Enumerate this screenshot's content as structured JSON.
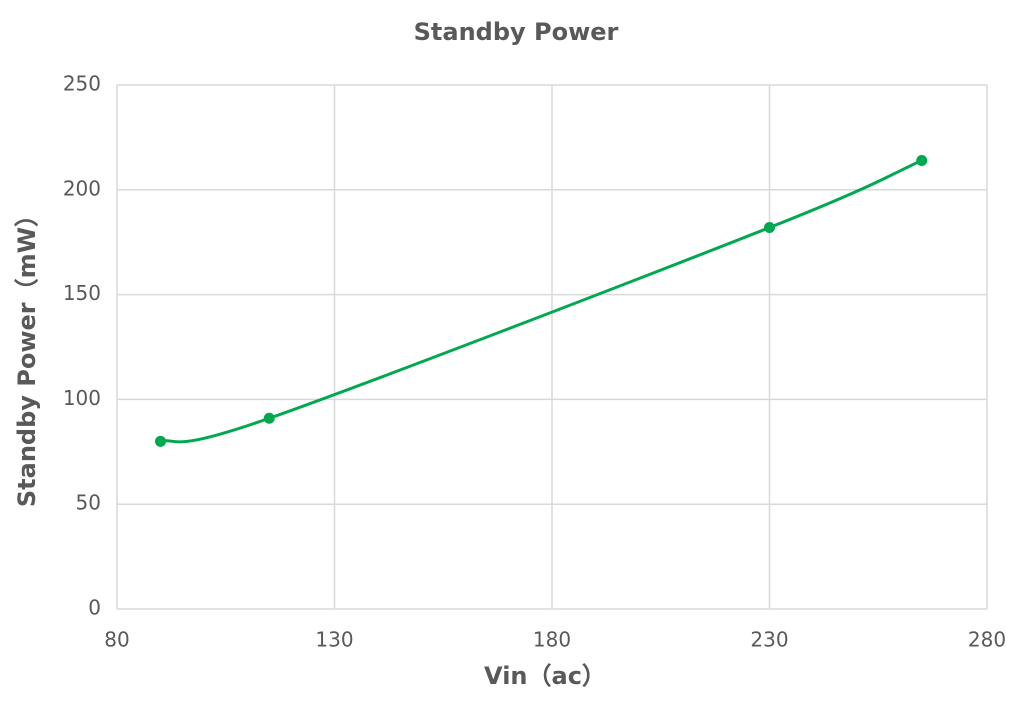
{
  "chart_data": {
    "type": "line",
    "title": "Standby Power",
    "x_label": "Vin（ac）",
    "y_label": "Standby Power（mW）",
    "x": [
      90,
      115,
      230,
      265
    ],
    "series": [
      {
        "name": "Standby Power",
        "color": "#00a850",
        "values": [
          80,
          91,
          182,
          214
        ]
      }
    ],
    "xlim": [
      80,
      280
    ],
    "xticks": [
      80,
      130,
      180,
      230,
      280
    ],
    "ylim": [
      0,
      250
    ],
    "yticks": [
      0,
      50,
      100,
      150,
      200,
      250
    ],
    "grid": true,
    "smooth": true,
    "markers": true
  }
}
